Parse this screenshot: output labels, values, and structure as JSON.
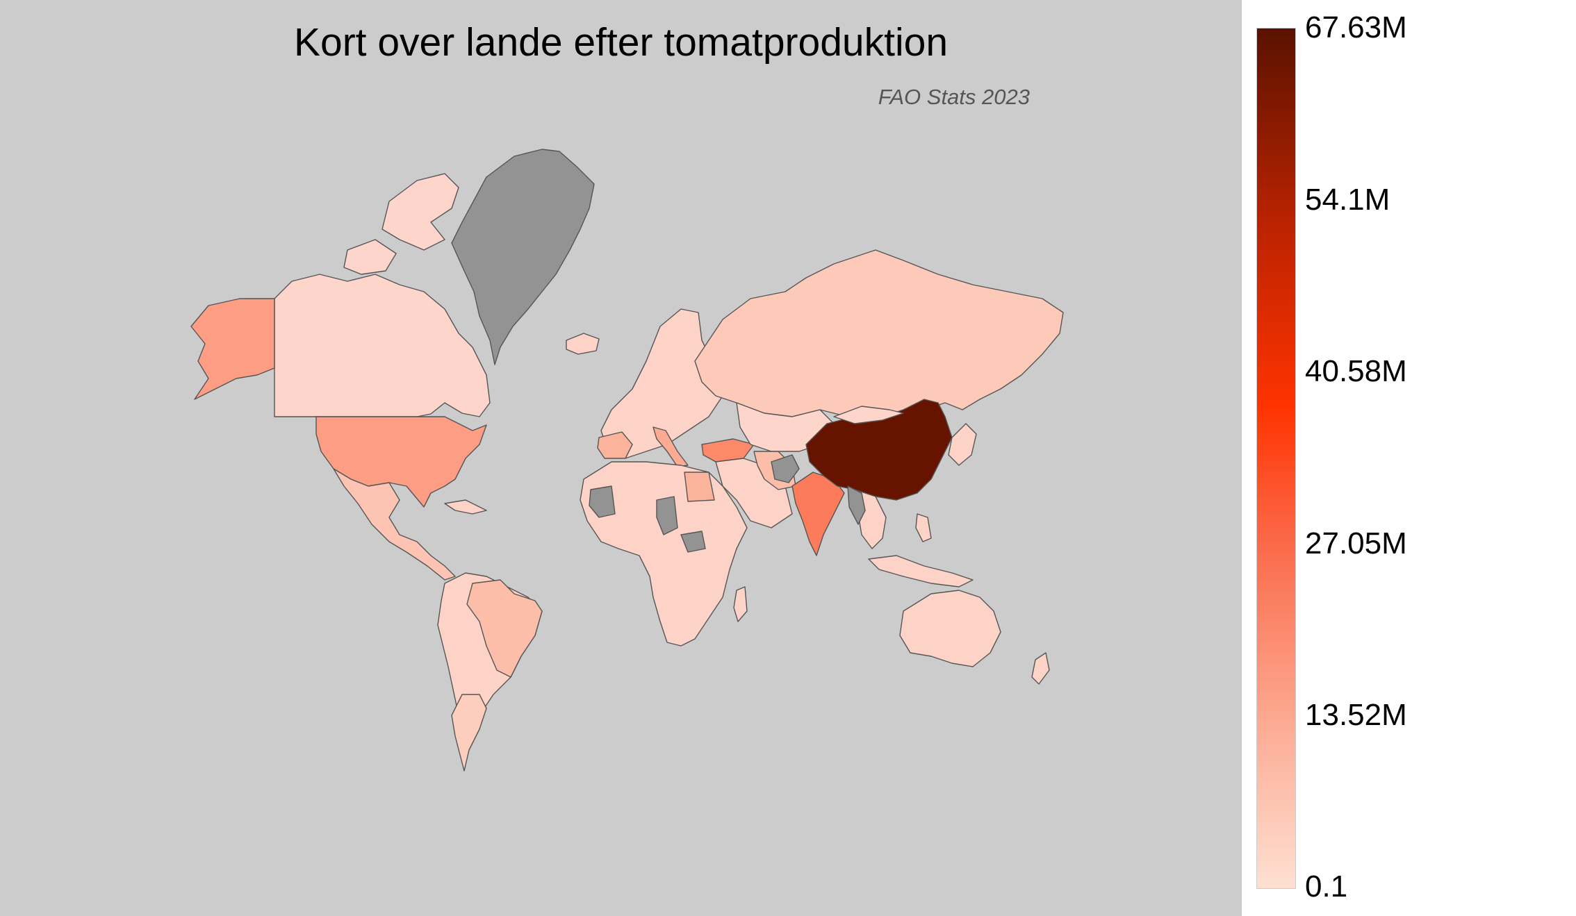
{
  "title": "Kort over lande efter tomatproduktion",
  "subtitle": "FAO Stats 2023",
  "colors": {
    "background": "#cccccc",
    "no_data": "#939393",
    "low": "#fdd3c7",
    "china": "#661400"
  },
  "colorbar": {
    "min": 0.1,
    "max": 67.63,
    "ticks": [
      "67.63M",
      "54.1M",
      "40.58M",
      "27.05M",
      "13.52M",
      "0.1"
    ]
  }
}
